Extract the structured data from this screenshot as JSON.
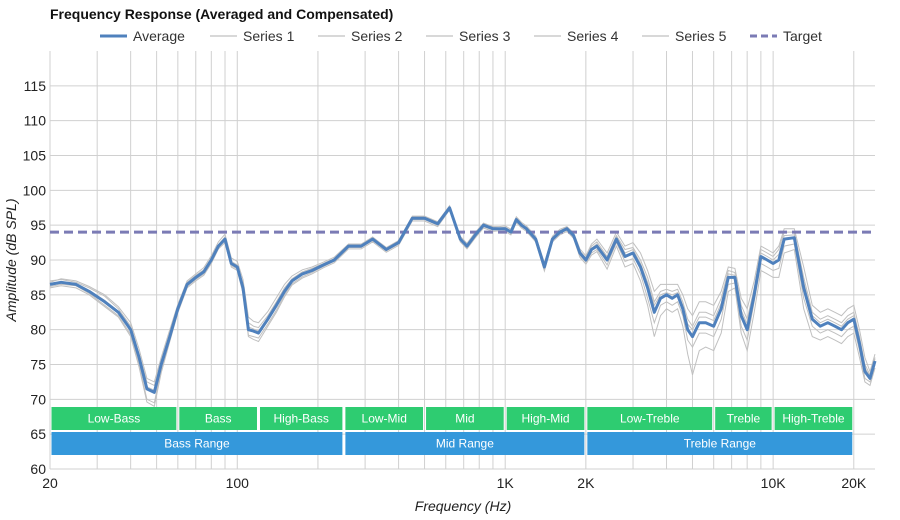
{
  "chart_data": {
    "type": "line",
    "title": "Frequency Response (Averaged and Compensated)",
    "xlabel": "Frequency (Hz)",
    "ylabel": "Amplitude (dB SPL)",
    "x_scale": "log",
    "xlim": [
      20,
      24000
    ],
    "ylim": [
      60,
      120
    ],
    "grid": true,
    "legend_position": "top",
    "x_ticks": [
      20,
      100,
      1000,
      2000,
      10000,
      20000
    ],
    "x_tick_labels": [
      "20",
      "100",
      "1K",
      "2K",
      "10K",
      "20K"
    ],
    "y_ticks": [
      60,
      65,
      70,
      75,
      80,
      85,
      90,
      95,
      100,
      105,
      110,
      115
    ],
    "x_minor_gridlines": [
      30,
      40,
      50,
      60,
      70,
      80,
      90,
      200,
      300,
      400,
      500,
      600,
      700,
      800,
      900,
      3000,
      4000,
      5000,
      6000,
      7000,
      8000,
      9000
    ],
    "legend": [
      {
        "label": "Average",
        "color": "#4f81bd",
        "style": "solid-thick"
      },
      {
        "label": "Series 1",
        "color": "#c0c0c0",
        "style": "solid-thin"
      },
      {
        "label": "Series 2",
        "color": "#c0c0c0",
        "style": "solid-thin"
      },
      {
        "label": "Series 3",
        "color": "#c0c0c0",
        "style": "solid-thin"
      },
      {
        "label": "Series 4",
        "color": "#c0c0c0",
        "style": "solid-thin"
      },
      {
        "label": "Series 5",
        "color": "#c0c0c0",
        "style": "solid-thin"
      },
      {
        "label": "Target",
        "color": "#7b7bb5",
        "style": "dashed"
      }
    ],
    "target_level": 94,
    "average": {
      "x": [
        20,
        22,
        25,
        28,
        32,
        36,
        40,
        43,
        46,
        49,
        52,
        56,
        60,
        65,
        70,
        75,
        80,
        85,
        90,
        95,
        100,
        105,
        110,
        115,
        120,
        130,
        140,
        150,
        160,
        175,
        190,
        210,
        230,
        260,
        290,
        320,
        360,
        400,
        450,
        500,
        560,
        620,
        680,
        720,
        770,
        830,
        900,
        950,
        1000,
        1050,
        1100,
        1150,
        1200,
        1300,
        1400,
        1500,
        1600,
        1700,
        1800,
        1900,
        2000,
        2100,
        2200,
        2400,
        2600,
        2800,
        3000,
        3200,
        3400,
        3600,
        3800,
        4000,
        4200,
        4400,
        4600,
        4800,
        5000,
        5300,
        5600,
        6000,
        6400,
        6800,
        7200,
        7600,
        8000,
        8500,
        9000,
        9500,
        10000,
        10500,
        11000,
        12000,
        13000,
        14000,
        15000,
        16000,
        17000,
        18000,
        19000,
        20000,
        21000,
        22000,
        23000,
        24000
      ],
      "y": [
        86.5,
        86.8,
        86.5,
        85.5,
        84.0,
        82.5,
        80.0,
        76.0,
        71.5,
        71.0,
        75.0,
        79.0,
        83.0,
        86.5,
        87.5,
        88.3,
        90.0,
        92.0,
        93.0,
        89.5,
        89.0,
        86.0,
        80.0,
        79.8,
        79.5,
        81.5,
        83.5,
        85.5,
        87.0,
        88.0,
        88.5,
        89.3,
        90.0,
        92.0,
        92.0,
        93.0,
        91.5,
        92.5,
        96.0,
        96.0,
        95.2,
        97.5,
        93.0,
        92.0,
        93.5,
        95.0,
        94.5,
        94.5,
        94.5,
        94.0,
        95.8,
        95.0,
        94.5,
        93.0,
        89.0,
        93.0,
        94.0,
        94.5,
        93.5,
        91.0,
        90.0,
        91.5,
        92.0,
        90.0,
        93.0,
        90.5,
        91.0,
        89.0,
        86.0,
        82.5,
        84.5,
        85.0,
        84.5,
        85.0,
        83.0,
        80.0,
        79.0,
        81.0,
        81.0,
        80.5,
        83.0,
        87.5,
        87.5,
        82.0,
        80.0,
        85.0,
        90.5,
        90.0,
        89.5,
        90.0,
        93.0,
        93.2,
        86.0,
        81.5,
        80.5,
        81.0,
        80.5,
        80.0,
        81.0,
        81.5,
        78.0,
        74.0,
        73.0,
        75.5
      ]
    },
    "series": [
      {
        "name": "Series 1",
        "y": [
          87.0,
          87.2,
          86.8,
          86.0,
          84.8,
          83.0,
          80.5,
          76.5,
          72.5,
          72.0,
          75.5,
          79.5,
          83.3,
          86.8,
          87.8,
          88.6,
          90.3,
          92.2,
          93.3,
          89.8,
          89.3,
          86.5,
          81.0,
          80.5,
          80.3,
          82.0,
          84.0,
          86.0,
          87.3,
          88.3,
          88.8,
          89.5,
          90.2,
          92.2,
          92.2,
          93.2,
          91.7,
          92.7,
          96.2,
          96.2,
          95.4,
          97.6,
          93.2,
          92.2,
          93.7,
          95.2,
          94.7,
          94.6,
          94.7,
          94.2,
          96.0,
          95.2,
          94.7,
          93.2,
          89.3,
          93.2,
          94.2,
          94.7,
          93.7,
          91.3,
          90.3,
          92.0,
          92.6,
          90.5,
          93.5,
          91.5,
          91.8,
          90.0,
          87.5,
          84.0,
          85.5,
          85.8,
          85.5,
          85.8,
          84.0,
          81.5,
          80.5,
          82.5,
          82.5,
          82.0,
          84.5,
          88.5,
          88.2,
          83.5,
          81.5,
          86.0,
          91.5,
          91.0,
          90.5,
          91.5,
          94.0,
          94.0,
          87.5,
          82.5,
          81.5,
          82.0,
          81.5,
          81.0,
          82.0,
          82.5,
          79.0,
          75.0,
          73.5,
          76.0
        ]
      },
      {
        "name": "Series 2",
        "y": [
          86.2,
          86.5,
          86.3,
          85.2,
          83.5,
          82.0,
          79.3,
          75.0,
          70.0,
          69.5,
          74.3,
          78.6,
          82.7,
          86.2,
          87.2,
          88.0,
          89.7,
          91.8,
          92.8,
          89.2,
          88.7,
          85.5,
          79.2,
          79.0,
          78.8,
          80.8,
          82.8,
          85.0,
          86.6,
          87.6,
          88.2,
          89.1,
          89.8,
          91.8,
          91.8,
          92.8,
          91.3,
          92.3,
          95.8,
          95.8,
          95.0,
          97.3,
          92.8,
          91.8,
          93.3,
          94.8,
          94.3,
          94.4,
          94.3,
          93.8,
          95.6,
          94.8,
          94.3,
          92.8,
          88.7,
          92.8,
          93.8,
          94.3,
          93.3,
          90.7,
          89.7,
          91.0,
          91.5,
          89.3,
          92.5,
          89.8,
          90.2,
          88.0,
          84.5,
          81.0,
          83.5,
          84.0,
          83.5,
          84.0,
          82.0,
          78.5,
          77.5,
          79.5,
          79.5,
          79.0,
          81.5,
          86.5,
          86.7,
          80.5,
          78.5,
          84.0,
          89.5,
          89.0,
          88.5,
          88.8,
          92.0,
          92.3,
          84.5,
          80.5,
          79.5,
          80.0,
          79.5,
          79.0,
          80.0,
          80.5,
          77.0,
          73.0,
          72.5,
          75.0
        ]
      },
      {
        "name": "Series 3",
        "y": [
          86.8,
          87.3,
          87.0,
          86.2,
          85.0,
          83.3,
          81.0,
          77.2,
          73.0,
          72.5,
          76.0,
          80.0,
          83.6,
          87.0,
          88.0,
          88.9,
          90.6,
          92.6,
          93.7,
          90.3,
          89.8,
          87.2,
          81.8,
          81.2,
          81.0,
          82.6,
          84.6,
          86.5,
          87.7,
          88.6,
          89.0,
          89.7,
          90.4,
          92.3,
          92.3,
          93.3,
          91.8,
          92.8,
          96.3,
          96.3,
          95.5,
          97.8,
          93.4,
          92.4,
          93.9,
          95.3,
          94.8,
          94.8,
          94.9,
          94.4,
          96.2,
          95.4,
          94.9,
          93.4,
          89.6,
          93.4,
          94.4,
          94.8,
          93.9,
          91.6,
          90.6,
          92.3,
          93.0,
          91.0,
          94.0,
          92.0,
          92.5,
          91.0,
          88.5,
          85.5,
          86.5,
          86.5,
          86.5,
          86.5,
          85.0,
          83.0,
          82.0,
          84.0,
          84.0,
          83.5,
          85.5,
          89.0,
          88.8,
          84.5,
          83.0,
          87.0,
          92.0,
          91.5,
          91.0,
          92.0,
          94.5,
          94.5,
          89.0,
          83.5,
          82.5,
          83.0,
          82.5,
          82.0,
          83.0,
          83.5,
          80.0,
          76.0,
          74.0,
          76.5
        ]
      },
      {
        "name": "Series 4",
        "y": [
          86.0,
          86.3,
          86.0,
          85.0,
          83.3,
          81.8,
          79.0,
          74.6,
          69.6,
          69.0,
          73.8,
          78.3,
          82.4,
          86.0,
          87.0,
          87.8,
          89.5,
          91.6,
          92.5,
          89.0,
          88.5,
          85.2,
          79.0,
          78.6,
          78.3,
          80.5,
          82.5,
          84.7,
          86.4,
          87.4,
          88.0,
          88.9,
          89.6,
          91.6,
          91.6,
          92.6,
          91.1,
          92.1,
          95.6,
          95.6,
          94.8,
          97.2,
          92.6,
          91.6,
          93.1,
          94.6,
          94.1,
          94.2,
          94.1,
          93.6,
          95.4,
          94.6,
          94.1,
          92.6,
          88.4,
          92.6,
          93.6,
          94.1,
          93.1,
          90.4,
          89.4,
          90.7,
          91.2,
          88.7,
          92.0,
          89.0,
          89.5,
          87.0,
          83.5,
          79.0,
          82.0,
          83.0,
          82.5,
          83.0,
          80.5,
          76.5,
          73.5,
          77.0,
          77.5,
          77.0,
          79.5,
          85.5,
          86.0,
          79.5,
          77.0,
          82.5,
          88.5,
          88.0,
          87.5,
          87.5,
          91.0,
          91.5,
          83.0,
          79.0,
          78.5,
          79.0,
          78.5,
          78.0,
          79.0,
          79.5,
          76.0,
          72.5,
          72.0,
          74.5
        ]
      },
      {
        "name": "Series 5",
        "y": [
          86.4,
          86.7,
          86.4,
          85.6,
          84.2,
          82.6,
          80.2,
          76.2,
          71.8,
          71.3,
          75.2,
          79.2,
          83.1,
          86.6,
          87.6,
          88.4,
          90.1,
          92.1,
          93.1,
          89.6,
          89.1,
          86.2,
          80.4,
          80.1,
          79.8,
          81.7,
          83.7,
          85.7,
          87.1,
          88.1,
          88.6,
          89.4,
          90.1,
          92.1,
          92.1,
          93.1,
          91.6,
          92.6,
          96.1,
          96.1,
          95.3,
          97.5,
          93.1,
          92.1,
          93.6,
          95.1,
          94.6,
          94.5,
          94.6,
          94.1,
          95.9,
          95.1,
          94.6,
          93.1,
          89.1,
          93.1,
          94.1,
          94.6,
          93.6,
          91.1,
          90.1,
          91.7,
          92.3,
          90.3,
          93.3,
          91.0,
          91.5,
          89.5,
          86.8,
          83.5,
          85.0,
          85.3,
          85.0,
          85.3,
          83.5,
          80.8,
          80.0,
          81.8,
          81.8,
          81.3,
          83.8,
          88.0,
          87.8,
          82.8,
          80.8,
          85.5,
          91.0,
          90.5,
          90.0,
          90.8,
          93.5,
          93.6,
          86.8,
          82.0,
          81.0,
          81.5,
          81.0,
          80.5,
          81.5,
          82.0,
          78.5,
          74.5,
          73.3,
          75.8
        ]
      }
    ],
    "bands_upper": [
      {
        "label": "Low-Bass",
        "from": 20,
        "to": 60
      },
      {
        "label": "Bass",
        "from": 60,
        "to": 120
      },
      {
        "label": "High-Bass",
        "from": 120,
        "to": 250
      },
      {
        "label": "Low-Mid",
        "from": 250,
        "to": 500
      },
      {
        "label": "Mid",
        "from": 500,
        "to": 1000
      },
      {
        "label": "High-Mid",
        "from": 1000,
        "to": 2000
      },
      {
        "label": "Low-Treble",
        "from": 2000,
        "to": 6000
      },
      {
        "label": "Treble",
        "from": 6000,
        "to": 10000
      },
      {
        "label": "High-Treble",
        "from": 10000,
        "to": 20000
      }
    ],
    "bands_lower": [
      {
        "label": "Bass Range",
        "from": 20,
        "to": 250
      },
      {
        "label": "Mid Range",
        "from": 250,
        "to": 2000
      },
      {
        "label": "Treble Range",
        "from": 2000,
        "to": 20000
      }
    ],
    "colors": {
      "average": "#4f81bd",
      "series": "#c0c0c0",
      "target": "#7b7bb5",
      "band_upper": "#2ecc71",
      "band_lower": "#3498db",
      "grid": "#d0d0d0"
    }
  }
}
